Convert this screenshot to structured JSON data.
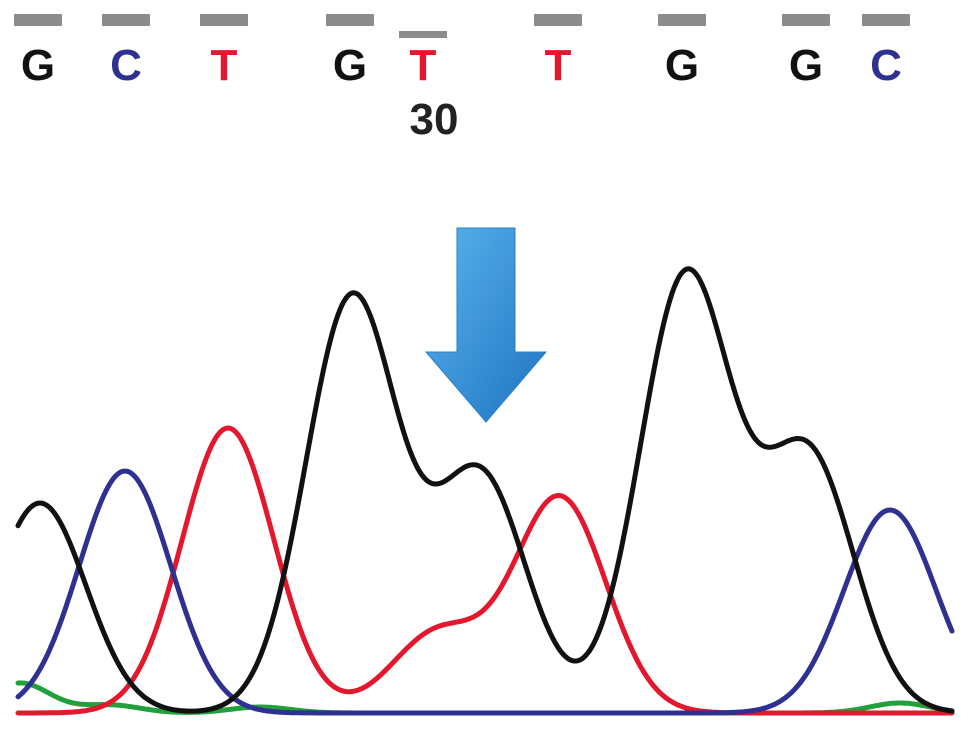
{
  "chart_data": {
    "type": "line",
    "title": "",
    "xlabel": "",
    "ylabel": "",
    "position_label": "30",
    "base_calls": [
      {
        "base": "G",
        "channel": "G",
        "quality": 1.0
      },
      {
        "base": "C",
        "channel": "C",
        "quality": 1.0
      },
      {
        "base": "T",
        "channel": "T",
        "quality": 1.0
      },
      {
        "base": "G",
        "channel": "G",
        "quality": 1.0
      },
      {
        "base": "T",
        "channel": "T",
        "quality": 0.55
      },
      {
        "base": "T",
        "channel": "T",
        "quality": 1.0
      },
      {
        "base": "G",
        "channel": "G",
        "quality": 1.0
      },
      {
        "base": "G",
        "channel": "G",
        "quality": 1.0
      },
      {
        "base": "C",
        "channel": "C",
        "quality": 1.0
      }
    ],
    "marker_index": 4,
    "series": [
      {
        "channel": "G",
        "color": "#111111",
        "peaks": [
          {
            "x": 40,
            "h": 210
          },
          {
            "x": 352,
            "h": 415
          },
          {
            "x": 480,
            "h": 238
          },
          {
            "x": 686,
            "h": 436
          },
          {
            "x": 808,
            "h": 258
          }
        ]
      },
      {
        "channel": "C",
        "color": "#2e3192",
        "peaks": [
          {
            "x": 125,
            "h": 242
          },
          {
            "x": 890,
            "h": 203
          }
        ]
      },
      {
        "channel": "T",
        "color": "#e3172d",
        "peaks": [
          {
            "x": 228,
            "h": 285
          },
          {
            "x": 438,
            "h": 80
          },
          {
            "x": 560,
            "h": 215
          }
        ]
      },
      {
        "channel": "A",
        "color": "#22a03c",
        "peaks": [
          {
            "x": 20,
            "h": 30
          },
          {
            "x": 110,
            "h": 8
          },
          {
            "x": 260,
            "h": 6
          },
          {
            "x": 900,
            "h": 10
          }
        ]
      }
    ],
    "colors": {
      "G": "#111111",
      "C": "#2e3192",
      "T": "#e3172d",
      "A": "#22a03c",
      "quality_bar": "#8c8c8c",
      "arrow": "#3a9ad9"
    }
  }
}
